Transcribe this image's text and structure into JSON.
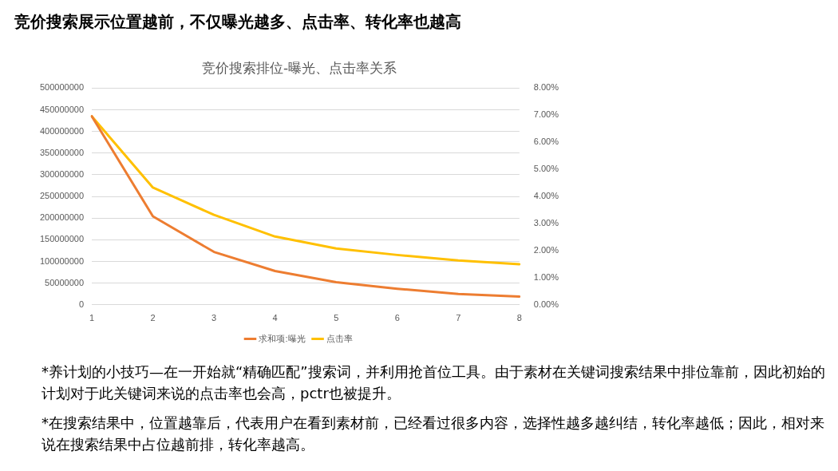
{
  "chart_data": {
    "type": "line",
    "title": "竞价搜索展示位置越前，不仅曝光越多、点击率、转化率也越高",
    "subtitle": "竞价搜索排位-曝光、点击率关系",
    "categories": [
      "1",
      "2",
      "3",
      "4",
      "5",
      "6",
      "7",
      "8"
    ],
    "series": [
      {
        "name": "求和项:曝光",
        "color": "#ed7d31",
        "values": [
          435000000,
          204000000,
          122000000,
          78000000,
          52000000,
          37000000,
          25000000,
          19000000
        ]
      },
      {
        "name": "点击率",
        "color": "#ffc000",
        "axis": "y2",
        "values": [
          6.96,
          4.33,
          3.32,
          2.52,
          2.08,
          1.84,
          1.64,
          1.5
        ]
      }
    ],
    "ylim": [
      0,
      500000000
    ],
    "yticks": [
      0,
      50000000,
      100000000,
      150000000,
      200000000,
      250000000,
      300000000,
      350000000,
      400000000,
      450000000,
      500000000
    ],
    "y2lim": [
      0,
      8
    ],
    "y2ticks": [
      {
        "value": 0,
        "label": "0.00%"
      },
      {
        "value": 1,
        "label": "1.00%"
      },
      {
        "value": 2,
        "label": "2.00%"
      },
      {
        "value": 3,
        "label": "3.00%"
      },
      {
        "value": 4,
        "label": "4.00%"
      },
      {
        "value": 5,
        "label": "5.00%"
      },
      {
        "value": 6,
        "label": "6.00%"
      },
      {
        "value": 7,
        "label": "7.00%"
      },
      {
        "value": 8,
        "label": "8.00%"
      }
    ],
    "grid": "y",
    "legend": "bottom",
    "marker": "none",
    "line_style": "solid",
    "annotations": [
      "*养计划的小技巧—在一开始就“精确匹配”搜索词，并利用抢首位工具。由于素材在关键词搜索结果中排位靠前，因此初始的计划对于此关键词来说的点击率也会高，pctr也被提升。",
      "*在搜索结果中，位置越靠后，代表用户在看到素材前，已经看过很多内容，选择性越多越纠结，转化率越低；因此，相对来说在搜索结果中占位越前排，转化率越高。"
    ]
  }
}
